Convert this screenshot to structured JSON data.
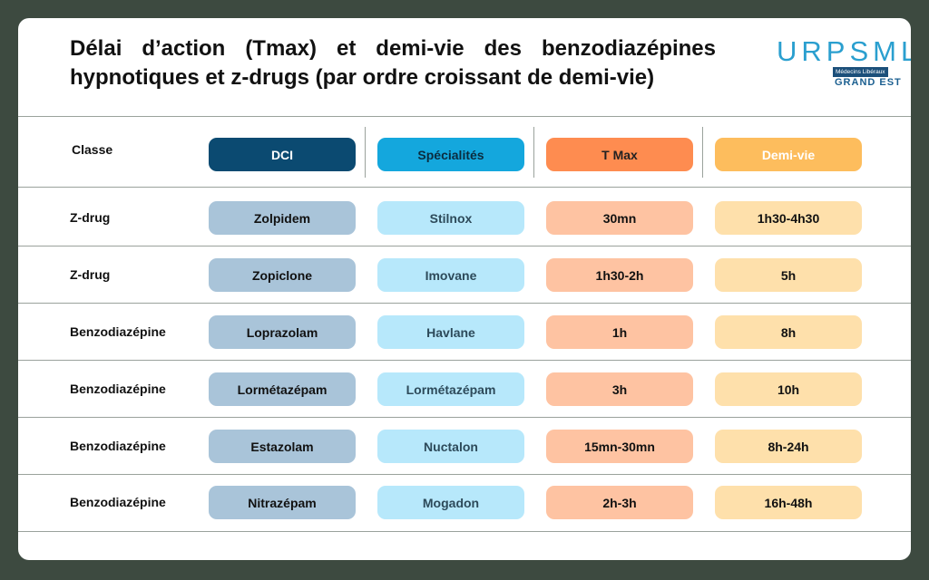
{
  "title": "Délai d’action (Tmax) et demi-vie des benzodiazépines hypnotiques et z-drugs (par ordre croissant de demi-vie)",
  "logo": {
    "word": "URPSML",
    "sub": "Médecins Libéraux",
    "region": "GRAND EST"
  },
  "headers": {
    "classe": "Classe",
    "dci": "DCI",
    "specialites": "Spécialités",
    "tmax": "T Max",
    "demivie": "Demi-vie"
  },
  "colors": {
    "dci": "#0b4a71",
    "specialites": "#14a7dd",
    "tmax": "#fe8c50",
    "demivie": "#fdbd5d",
    "background": "#3d4a40"
  },
  "rows": [
    {
      "classe": "Z-drug",
      "dci": "Zolpidem",
      "specialite": "Stilnox",
      "tmax": "30mn",
      "demivie": "1h30-4h30"
    },
    {
      "classe": "Z-drug",
      "dci": "Zopiclone",
      "specialite": "Imovane",
      "tmax": "1h30-2h",
      "demivie": "5h"
    },
    {
      "classe": "Benzodiazépine",
      "dci": "Loprazolam",
      "specialite": "Havlane",
      "tmax": "1h",
      "demivie": "8h"
    },
    {
      "classe": "Benzodiazépine",
      "dci": "Lormétazépam",
      "specialite": "Lormétazépam",
      "tmax": "3h",
      "demivie": "10h"
    },
    {
      "classe": "Benzodiazépine",
      "dci": "Estazolam",
      "specialite": "Nuctalon",
      "tmax": "15mn-30mn",
      "demivie": "8h-24h"
    },
    {
      "classe": "Benzodiazépine",
      "dci": "Nitrazépam",
      "specialite": "Mogadon",
      "tmax": "2h-3h",
      "demivie": "16h-48h"
    }
  ]
}
